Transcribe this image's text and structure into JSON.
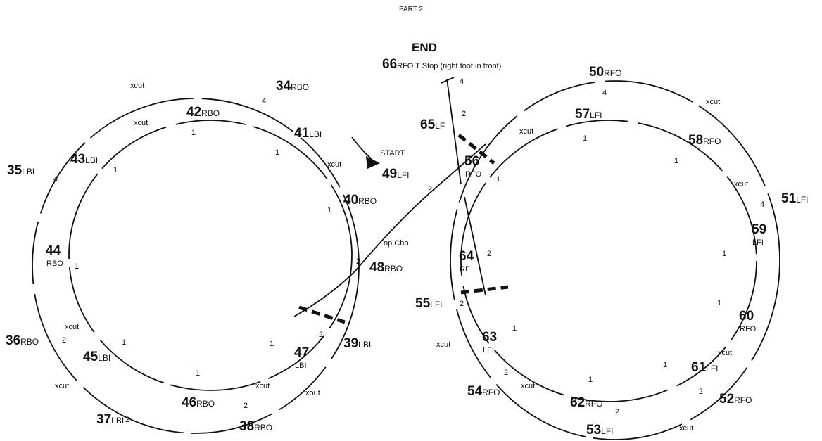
{
  "title": "PART 2",
  "end": "END",
  "start": "START",
  "steps": [
    {
      "number": "34",
      "edge": "RBO"
    },
    {
      "number": "35",
      "edge": "LBI"
    },
    {
      "number": "36",
      "edge": "RBO"
    },
    {
      "number": "37",
      "edge": "LBI"
    },
    {
      "number": "38",
      "edge": "RBO"
    },
    {
      "number": "39",
      "edge": "LBI"
    },
    {
      "number": "40",
      "edge": "RBO"
    },
    {
      "number": "41",
      "edge": "LBI"
    },
    {
      "number": "42",
      "edge": "RBO"
    },
    {
      "number": "43",
      "edge": "LBI"
    },
    {
      "number": "44",
      "edge": "RBO"
    },
    {
      "number": "45",
      "edge": "LBI"
    },
    {
      "number": "46",
      "edge": "RBO"
    },
    {
      "number": "47",
      "edge": "LBI"
    },
    {
      "number": "48",
      "edge": "RBO"
    },
    {
      "number": "49",
      "edge": "LFI"
    },
    {
      "number": "50",
      "edge": "RFO"
    },
    {
      "number": "51",
      "edge": "LFI"
    },
    {
      "number": "52",
      "edge": "RFO"
    },
    {
      "number": "53",
      "edge": "LFI"
    },
    {
      "number": "54",
      "edge": "RFO"
    },
    {
      "number": "55",
      "edge": "LFI"
    },
    {
      "number": "56",
      "edge": "RFO"
    },
    {
      "number": "57",
      "edge": "LFI"
    },
    {
      "number": "58",
      "edge": "RFO"
    },
    {
      "number": "59",
      "edge": "LFI"
    },
    {
      "number": "60",
      "edge": "RFO"
    },
    {
      "number": "61",
      "edge": "LFI"
    },
    {
      "number": "62",
      "edge": "RFO"
    },
    {
      "number": "63",
      "edge": "LFI"
    },
    {
      "number": "64",
      "edge": "RF"
    },
    {
      "number": "65",
      "edge": "LF"
    },
    {
      "number": "66",
      "edge": "RFO T Stop (right foot in front)"
    }
  ],
  "cuts": [
    "xcut",
    "xcut",
    "xcut",
    "xcut",
    "xcut",
    "xcut",
    "xcut",
    "xcut",
    "xout",
    "xcut",
    "xcut",
    "xcut",
    "xcut",
    "xcut",
    "op Cho"
  ],
  "counts": [
    "4",
    "4",
    "1",
    "1",
    "1",
    "1",
    "2",
    "1",
    "2",
    "1",
    "1",
    "2",
    "1",
    "2",
    "2",
    "4",
    "2",
    "2",
    "4",
    "1",
    "1",
    "1",
    "4",
    "1",
    "2",
    "2",
    "1",
    "1",
    "1",
    "1",
    "2",
    "2",
    "2"
  ]
}
